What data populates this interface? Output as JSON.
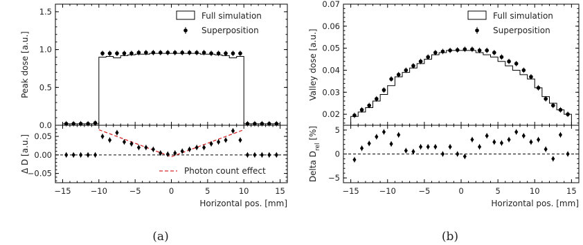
{
  "captions": [
    "(a)",
    "(b)"
  ],
  "chart_data": [
    {
      "id": "a-top",
      "type": "line",
      "ylabel": "Peak dose [a.u.]",
      "xlim": [
        -16,
        16
      ],
      "ylim": [
        0,
        1.6
      ],
      "yticks": [
        0.0,
        0.5,
        1.0,
        1.5
      ],
      "ytick_labels": [
        "0.0",
        "0.5",
        "1.0",
        "1.5"
      ],
      "xticks": [
        -15,
        -10,
        -5,
        0,
        5,
        10,
        15
      ],
      "legend": {
        "position": "top-right",
        "entries": [
          "Full simulation",
          "Superposition"
        ]
      },
      "series": [
        {
          "name": "Full simulation",
          "kind": "step",
          "edges": [
            -15,
            -14,
            -13,
            -12,
            -11,
            -10,
            -9,
            -8,
            -7,
            -6,
            -5,
            -4,
            -3,
            -2,
            -1,
            0,
            1,
            2,
            3,
            4,
            5,
            6,
            7,
            8,
            9,
            10,
            11,
            12,
            13,
            14,
            15
          ],
          "values": [
            0.02,
            0.02,
            0.02,
            0.02,
            0.02,
            0.9,
            0.91,
            0.89,
            0.92,
            0.93,
            0.94,
            0.94,
            0.95,
            0.95,
            0.95,
            0.95,
            0.95,
            0.95,
            0.95,
            0.94,
            0.94,
            0.93,
            0.92,
            0.89,
            0.91,
            0.02,
            0.02,
            0.02,
            0.02,
            0.02
          ]
        },
        {
          "name": "Superposition",
          "kind": "points",
          "x": [
            -14.5,
            -13.5,
            -12.5,
            -11.5,
            -10.5,
            -9.5,
            -8.5,
            -7.5,
            -6.5,
            -5.5,
            -4.5,
            -3.5,
            -2.5,
            -1.5,
            -0.5,
            0.5,
            1.5,
            2.5,
            3.5,
            4.5,
            5.5,
            6.5,
            7.5,
            8.5,
            9.5,
            10.5,
            11.5,
            12.5,
            13.5,
            14.5
          ],
          "y": [
            0.02,
            0.02,
            0.02,
            0.02,
            0.03,
            0.95,
            0.95,
            0.95,
            0.95,
            0.95,
            0.96,
            0.96,
            0.96,
            0.96,
            0.96,
            0.96,
            0.96,
            0.96,
            0.96,
            0.96,
            0.95,
            0.95,
            0.95,
            0.95,
            0.95,
            0.02,
            0.02,
            0.02,
            0.02,
            0.02
          ]
        }
      ]
    },
    {
      "id": "a-bottom",
      "type": "scatter",
      "xlabel": "Horizontal pos. [mm]",
      "ylabel": "Δ D [a.u.]",
      "xlim": [
        -16,
        16
      ],
      "ylim": [
        -0.075,
        0.08
      ],
      "yticks": [
        -0.05,
        0.0,
        0.05
      ],
      "ytick_labels": [
        "−0.05",
        "0.00",
        "0.05"
      ],
      "xticks": [
        -15,
        -10,
        -5,
        0,
        5,
        10,
        15
      ],
      "xtick_labels": [
        "−15",
        "−10",
        "−5",
        "0",
        "5",
        "10",
        "15"
      ],
      "legend": {
        "position": "bottom-right",
        "entries": [
          "Photon count effect"
        ]
      },
      "reference_line": 0,
      "fit_line": {
        "name": "Photon count effect",
        "x": [
          -10,
          0,
          10
        ],
        "y": [
          0.068,
          -0.005,
          0.068
        ],
        "color": "#d62728"
      },
      "series": [
        {
          "name": "Superposition",
          "kind": "points",
          "x": [
            -14.5,
            -13.5,
            -12.5,
            -11.5,
            -10.5,
            -9.5,
            -8.5,
            -7.5,
            -6.5,
            -5.5,
            -4.5,
            -3.5,
            -2.5,
            -1.5,
            -0.5,
            0.5,
            1.5,
            2.5,
            3.5,
            4.5,
            5.5,
            6.5,
            7.5,
            8.5,
            9.5,
            10.5,
            11.5,
            12.5,
            13.5,
            14.5
          ],
          "y": [
            0.0,
            0.0,
            0.0,
            0.0,
            0.0,
            0.05,
            0.04,
            0.06,
            0.035,
            0.03,
            0.02,
            0.02,
            0.015,
            0.005,
            0.002,
            0.005,
            0.01,
            0.015,
            0.02,
            0.02,
            0.03,
            0.035,
            0.04,
            0.065,
            0.04,
            0.0,
            0.0,
            0.0,
            0.0,
            0.0
          ]
        }
      ]
    },
    {
      "id": "b-top",
      "type": "line",
      "ylabel": "Valley dose [a.u.]",
      "xlim": [
        -16,
        16
      ],
      "ylim": [
        0.015,
        0.07
      ],
      "yticks": [
        0.02,
        0.03,
        0.04,
        0.05,
        0.06,
        0.07
      ],
      "ytick_labels": [
        "0.02",
        "0.03",
        "0.04",
        "0.05",
        "0.06",
        "0.07"
      ],
      "xticks": [
        -15,
        -10,
        -5,
        0,
        5,
        10,
        15
      ],
      "legend": {
        "position": "top-right",
        "entries": [
          "Full simulation",
          "Superposition"
        ]
      },
      "series": [
        {
          "name": "Full simulation",
          "kind": "step",
          "edges": [
            -15,
            -14,
            -13,
            -12,
            -11,
            -10,
            -9,
            -8,
            -7,
            -6,
            -5,
            -4,
            -3,
            -2,
            -1,
            0,
            1,
            2,
            3,
            4,
            5,
            6,
            7,
            8,
            9,
            10,
            11,
            12,
            13,
            14,
            15
          ],
          "values": [
            0.019,
            0.021,
            0.023,
            0.026,
            0.029,
            0.033,
            0.037,
            0.039,
            0.041,
            0.043,
            0.045,
            0.047,
            0.048,
            0.049,
            0.049,
            0.049,
            0.049,
            0.048,
            0.047,
            0.046,
            0.044,
            0.042,
            0.04,
            0.038,
            0.036,
            0.032,
            0.028,
            0.025,
            0.022,
            0.02
          ]
        },
        {
          "name": "Superposition",
          "kind": "points",
          "x": [
            -14.5,
            -13.5,
            -12.5,
            -11.5,
            -10.5,
            -9.5,
            -8.5,
            -7.5,
            -6.5,
            -5.5,
            -4.5,
            -3.5,
            -2.5,
            -1.5,
            -0.5,
            0.5,
            1.5,
            2.5,
            3.5,
            4.5,
            5.5,
            6.5,
            7.5,
            8.5,
            9.5,
            10.5,
            11.5,
            12.5,
            13.5,
            14.5
          ],
          "y": [
            0.0195,
            0.022,
            0.024,
            0.027,
            0.031,
            0.036,
            0.038,
            0.04,
            0.042,
            0.044,
            0.046,
            0.048,
            0.0485,
            0.049,
            0.0492,
            0.0495,
            0.0495,
            0.049,
            0.049,
            0.048,
            0.046,
            0.044,
            0.043,
            0.04,
            0.037,
            0.032,
            0.027,
            0.024,
            0.022,
            0.02
          ]
        }
      ]
    },
    {
      "id": "b-bottom",
      "type": "scatter",
      "xlabel": "Horizontal pos. [mm]",
      "ylabel": "Delta D",
      "ylabel_sub": "rel",
      "ylabel_unit": " [%]",
      "xlim": [
        -16,
        16
      ],
      "ylim": [
        -6,
        6
      ],
      "yticks": [
        -5,
        0,
        5
      ],
      "ytick_labels": [
        "−5",
        "0",
        "5"
      ],
      "xticks": [
        -15,
        -10,
        -5,
        0,
        5,
        10,
        15
      ],
      "xtick_labels": [
        "−15",
        "−10",
        "−5",
        "0",
        "5",
        "10",
        "15"
      ],
      "reference_line": 0,
      "series": [
        {
          "name": "Superposition",
          "kind": "points",
          "x": [
            -14.5,
            -13.5,
            -12.5,
            -11.5,
            -10.5,
            -9.5,
            -8.5,
            -7.5,
            -6.5,
            -5.5,
            -4.5,
            -3.5,
            -2.5,
            -1.5,
            -0.5,
            0.5,
            1.5,
            2.5,
            3.5,
            4.5,
            5.5,
            6.5,
            7.5,
            8.5,
            9.5,
            10.5,
            11.5,
            12.5,
            13.5,
            14.5
          ],
          "y": [
            -1.2,
            1.2,
            2.2,
            3.6,
            4.6,
            2.1,
            4.0,
            0.7,
            0.5,
            1.5,
            1.5,
            1.5,
            0.0,
            1.5,
            0.0,
            -0.5,
            3.0,
            1.5,
            3.8,
            2.5,
            2.3,
            3.0,
            4.6,
            3.8,
            2.5,
            3.0,
            1.0,
            -1.0,
            4.0,
            0.0
          ]
        }
      ]
    }
  ]
}
